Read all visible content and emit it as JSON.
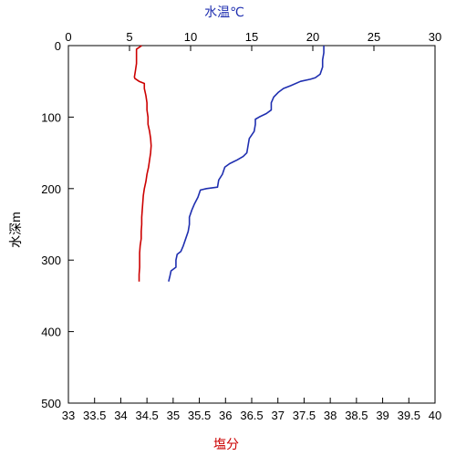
{
  "chart_data": {
    "type": "line",
    "axis_titles": {
      "top": "水温℃",
      "bottom": "塩分",
      "left": "水深m"
    },
    "temperature_axis": {
      "position": "top",
      "range": [
        0,
        30
      ],
      "ticks": [
        "0",
        "5",
        "10",
        "15",
        "20",
        "25",
        "30"
      ],
      "tick_values": [
        0,
        5,
        10,
        15,
        20,
        25,
        30
      ],
      "color": "#1f2fb0"
    },
    "salinity_axis": {
      "position": "bottom",
      "range": [
        33,
        40
      ],
      "ticks": [
        "33",
        "33.5",
        "34",
        "34.5",
        "35",
        "35.5",
        "36",
        "36.5",
        "37",
        "37.5",
        "38",
        "38.5",
        "39",
        "39.5",
        "40"
      ],
      "tick_values": [
        33,
        33.5,
        34,
        34.5,
        35,
        35.5,
        36,
        36.5,
        37,
        37.5,
        38,
        38.5,
        39,
        39.5,
        40
      ],
      "color": "#cc0000"
    },
    "depth_axis": {
      "position": "left",
      "range": [
        0,
        500
      ],
      "inverted": true,
      "ticks": [
        "0",
        "100",
        "200",
        "300",
        "400",
        "500"
      ],
      "tick_values": [
        0,
        100,
        200,
        300,
        400,
        500
      ]
    },
    "grid": false,
    "series": [
      {
        "axis": "temperature",
        "color": "#1f2fb0",
        "points": [
          [
            20.9,
            0
          ],
          [
            20.9,
            10
          ],
          [
            20.8,
            20
          ],
          [
            20.8,
            30
          ],
          [
            20.6,
            40
          ],
          [
            20.2,
            45
          ],
          [
            19.8,
            47
          ],
          [
            19.0,
            50
          ],
          [
            18.2,
            56
          ],
          [
            17.6,
            60
          ],
          [
            17.2,
            65
          ],
          [
            16.8,
            72
          ],
          [
            16.6,
            80
          ],
          [
            16.6,
            90
          ],
          [
            16.2,
            95
          ],
          [
            15.6,
            100
          ],
          [
            15.3,
            103
          ],
          [
            15.3,
            110
          ],
          [
            15.2,
            120
          ],
          [
            14.8,
            130
          ],
          [
            14.7,
            140
          ],
          [
            14.6,
            150
          ],
          [
            14.3,
            155
          ],
          [
            13.8,
            160
          ],
          [
            13.2,
            165
          ],
          [
            12.8,
            170
          ],
          [
            12.6,
            180
          ],
          [
            12.3,
            188
          ],
          [
            12.2,
            198
          ],
          [
            11.3,
            200
          ],
          [
            10.8,
            202
          ],
          [
            10.6,
            212
          ],
          [
            10.3,
            222
          ],
          [
            10.1,
            230
          ],
          [
            9.9,
            240
          ],
          [
            9.9,
            250
          ],
          [
            9.8,
            260
          ],
          [
            9.6,
            270
          ],
          [
            9.4,
            280
          ],
          [
            9.2,
            288
          ],
          [
            8.9,
            292
          ],
          [
            8.8,
            300
          ],
          [
            8.8,
            310
          ],
          [
            8.4,
            315
          ],
          [
            8.3,
            323
          ],
          [
            8.2,
            330
          ]
        ]
      },
      {
        "axis": "salinity",
        "color": "#cc0000",
        "points": [
          [
            34.4,
            0
          ],
          [
            34.3,
            5
          ],
          [
            34.3,
            15
          ],
          [
            34.3,
            25
          ],
          [
            34.28,
            35
          ],
          [
            34.26,
            44
          ],
          [
            34.27,
            46
          ],
          [
            34.35,
            50
          ],
          [
            34.45,
            53
          ],
          [
            34.45,
            60
          ],
          [
            34.48,
            70
          ],
          [
            34.5,
            80
          ],
          [
            34.5,
            90
          ],
          [
            34.52,
            100
          ],
          [
            34.52,
            110
          ],
          [
            34.55,
            120
          ],
          [
            34.57,
            130
          ],
          [
            34.58,
            140
          ],
          [
            34.57,
            150
          ],
          [
            34.55,
            160
          ],
          [
            34.53,
            170
          ],
          [
            34.5,
            180
          ],
          [
            34.48,
            190
          ],
          [
            34.45,
            200
          ],
          [
            34.43,
            210
          ],
          [
            34.42,
            220
          ],
          [
            34.41,
            230
          ],
          [
            34.4,
            240
          ],
          [
            34.4,
            250
          ],
          [
            34.39,
            260
          ],
          [
            34.39,
            270
          ],
          [
            34.37,
            280
          ],
          [
            34.36,
            290
          ],
          [
            34.36,
            300
          ],
          [
            34.36,
            310
          ],
          [
            34.35,
            320
          ],
          [
            34.35,
            330
          ]
        ]
      }
    ]
  }
}
